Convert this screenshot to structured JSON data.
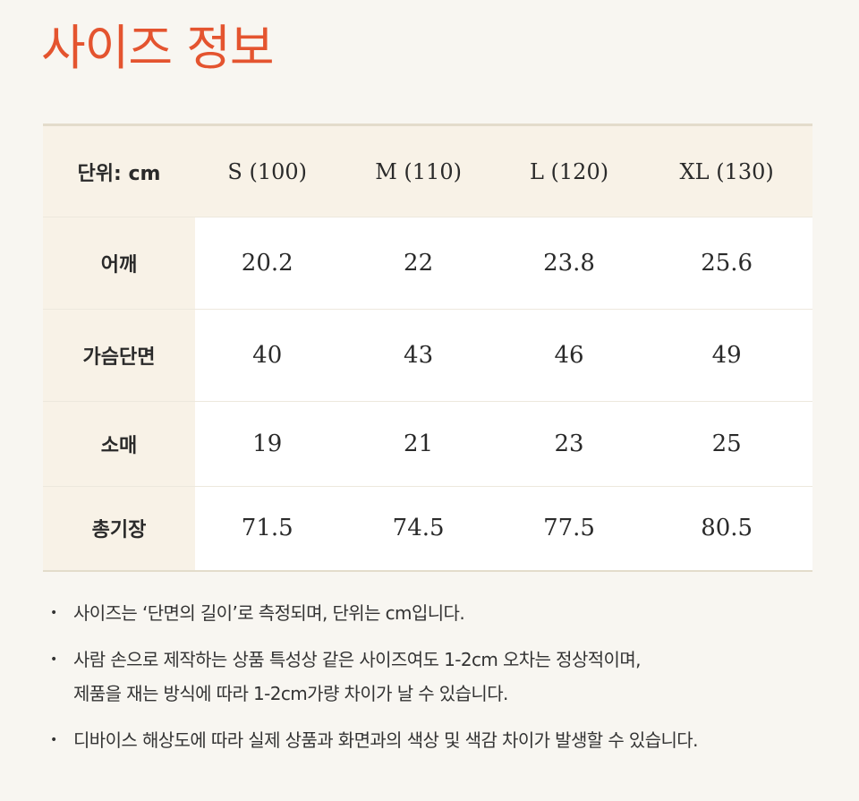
{
  "title": "사이즈 정보",
  "table": {
    "header": [
      "단위: cm",
      "S (100)",
      "M (110)",
      "L (120)",
      "XL (130)"
    ],
    "rows": [
      {
        "label": "어깨",
        "values": [
          "20.2",
          "22",
          "23.8",
          "25.6"
        ]
      },
      {
        "label": "가슴단면",
        "values": [
          "40",
          "43",
          "46",
          "49"
        ]
      },
      {
        "label": "소매",
        "values": [
          "19",
          "21",
          "23",
          "25"
        ]
      },
      {
        "label": "총기장",
        "values": [
          "71.5",
          "74.5",
          "77.5",
          "80.5"
        ]
      }
    ]
  },
  "notes": [
    {
      "lines": [
        "사이즈는 ‘단면의 길이’로 측정되며, 단위는 cm입니다."
      ]
    },
    {
      "lines": [
        "사람 손으로 제작하는 상품 특성상 같은 사이즈여도 1-2cm 오차는 정상적이며,",
        "제품을 재는 방식에 따라 1-2cm가량 차이가 날 수 있습니다."
      ]
    },
    {
      "lines": [
        "디바이스 해상도에 따라 실제 상품과 화면과의 색상 및 색감 차이가 발생할 수 있습니다."
      ]
    }
  ],
  "bullet": "•",
  "colors": {
    "title": "#e4542f",
    "header_bg": "#f8f2e7",
    "cell_bg": "#ffffff",
    "page_bg": "#f8f6f1"
  }
}
